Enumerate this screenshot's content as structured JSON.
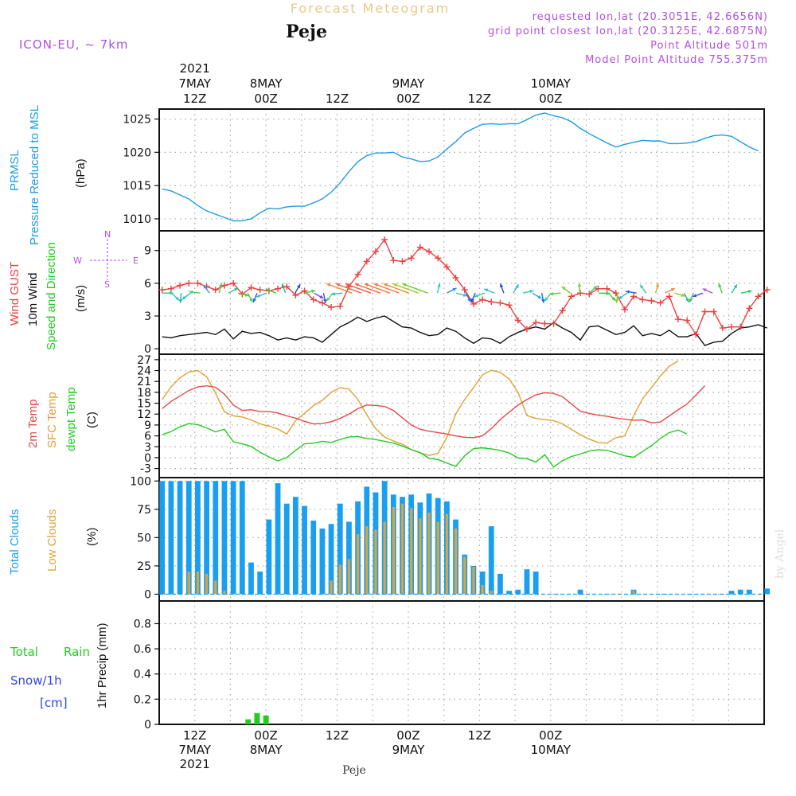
{
  "header": {
    "title": "Forecast Meteogram",
    "location": "Peje",
    "model": "ICON-EU, ~ 7km",
    "requested": "requested lon,lat (20.3051E, 42.6656N)",
    "gridpoint": "grid point closest lon,lat (20.3125E, 42.6875N)",
    "point_alt": "Point Altitude 501m",
    "model_alt": "Model Point Altitude 755.375m"
  },
  "footer": {
    "location": "Peje",
    "credit": "by Angel"
  },
  "colors": {
    "pressure": "#1e9be6",
    "gust": "#ec4040",
    "wind": "#111111",
    "temp": "#e84848",
    "sfc": "#e3a033",
    "dew": "#22cc22",
    "total_cloud": "#1a9ff0",
    "low_cloud": "#dda43c",
    "rain": "#22cc22",
    "snow": "#3344ee",
    "compass": "#b050e0",
    "info": "#b050e0"
  },
  "time_axis": {
    "top_labels": [
      {
        "lines": [
          "2021",
          "7MAY",
          "12Z"
        ]
      },
      {
        "lines": [
          "8MAY",
          "00Z"
        ]
      },
      {
        "lines": [
          "12Z"
        ]
      },
      {
        "lines": [
          "9MAY",
          "00Z"
        ]
      },
      {
        "lines": [
          "12Z"
        ]
      },
      {
        "lines": [
          "10MAY",
          "00Z"
        ]
      }
    ],
    "bottom_labels": [
      {
        "lines": [
          "12Z",
          "7MAY",
          "2021"
        ]
      },
      {
        "lines": [
          "00Z",
          "8MAY"
        ]
      },
      {
        "lines": [
          "12Z"
        ]
      },
      {
        "lines": [
          "00Z",
          "9MAY"
        ]
      },
      {
        "lines": [
          "12Z"
        ]
      },
      {
        "lines": [
          "00Z",
          "10MAY"
        ]
      }
    ]
  },
  "panel_labels": {
    "pressure": {
      "a": "PRMSL",
      "b": "Pressure Reduced to MSL",
      "unit": "(hPa)"
    },
    "wind": {
      "a": "Wind GUST",
      "b": "10m Wind",
      "c": "Speed and Direction",
      "unit": "(m/s)",
      "compass_n": "N",
      "compass_s": "S",
      "compass_w": "W",
      "compass_e": "E"
    },
    "temp": {
      "a": "2m Temp",
      "b": "SFC Temp",
      "c": "dewpt Temp",
      "unit": "(C)"
    },
    "cloud": {
      "a": "Total Clouds",
      "b": "Low Clouds",
      "unit": "(%)"
    },
    "precip": {
      "a": "Total",
      "a2": "Rain",
      "b": "Snow/1h",
      "c": "[cm]",
      "unit": "1hr Precip (mm)"
    }
  },
  "chart_data": [
    {
      "type": "line",
      "title": "PRMSL Pressure Reduced to MSL",
      "ylabel": "(hPa)",
      "x_start_hour": 1,
      "x_step_hours": 3,
      "yticks": [
        1010,
        1015,
        1020,
        1025
      ],
      "ylim": [
        1008.2,
        1026.5
      ],
      "values": [
        1014.5,
        1014.2,
        1013.6,
        1013.0,
        1012.0,
        1011.2,
        1010.7,
        1010.2,
        1009.7,
        1009.7,
        1010.0,
        1010.9,
        1011.6,
        1011.5,
        1011.8,
        1011.9,
        1011.9,
        1012.4,
        1013.0,
        1014.0,
        1015.4,
        1017.1,
        1018.6,
        1019.5,
        1019.9,
        1019.9,
        1020.0,
        1019.3,
        1019.0,
        1018.6,
        1018.7,
        1019.3,
        1020.5,
        1021.6,
        1022.9,
        1023.6,
        1024.2,
        1024.3,
        1024.2,
        1024.3,
        1024.3,
        1024.9,
        1025.6,
        1025.9,
        1025.5,
        1025.2,
        1024.6,
        1023.6,
        1022.8,
        1022.1,
        1021.4,
        1020.8,
        1021.2,
        1021.5,
        1021.8,
        1021.7,
        1021.7,
        1021.3,
        1021.3,
        1021.4,
        1021.6,
        1022.1,
        1022.5,
        1022.6,
        1022.4,
        1021.6,
        1020.8,
        1020.2
      ]
    },
    {
      "type": "line",
      "title": "Wind GUST / 10m Wind Speed and Direction",
      "ylabel": "(m/s)",
      "x_start_hour": 1,
      "x_step_hours": 3,
      "yticks": [
        0,
        3,
        6,
        9
      ],
      "ylim": [
        -0.5,
        10.8
      ],
      "series": [
        {
          "name": "Wind GUST",
          "values": [
            5.4,
            5.5,
            5.8,
            6.0,
            6.0,
            5.7,
            5.4,
            5.8,
            6.0,
            5.0,
            5.6,
            5.4,
            5.3,
            5.5,
            5.7,
            4.9,
            5.3,
            4.5,
            4.2,
            3.8,
            3.9,
            5.7,
            6.8,
            8.0,
            8.9,
            10.0,
            8.1,
            8.0,
            8.3,
            9.3,
            8.9,
            8.3,
            7.5,
            6.5,
            5.4,
            4.1,
            4.5,
            4.3,
            4.2,
            4.0,
            2.6,
            1.8,
            2.4,
            2.3,
            2.3,
            3.5,
            4.8,
            5.1,
            5.0,
            5.5,
            5.5,
            5.1,
            3.6,
            4.8,
            4.5,
            4.4,
            4.2,
            4.8,
            2.7,
            2.6,
            1.3,
            3.4,
            3.4,
            1.9,
            2.0,
            2.0,
            3.7,
            4.8,
            5.4
          ]
        },
        {
          "name": "10m Wind",
          "values": [
            1.1,
            1.0,
            1.2,
            1.3,
            1.4,
            1.5,
            1.3,
            1.8,
            0.9,
            1.6,
            1.4,
            1.5,
            1.2,
            0.8,
            1.0,
            0.8,
            1.1,
            1.0,
            0.6,
            1.3,
            2.0,
            2.4,
            2.9,
            2.5,
            2.8,
            3.0,
            2.5,
            2.0,
            1.9,
            1.5,
            1.2,
            1.3,
            1.9,
            1.6,
            1.0,
            0.5,
            1.0,
            0.9,
            0.5,
            1.1,
            1.5,
            1.8,
            2.0,
            1.8,
            2.4,
            1.9,
            1.5,
            0.8,
            2.0,
            2.1,
            1.7,
            1.3,
            1.5,
            2.1,
            1.2,
            1.4,
            1.2,
            1.7,
            1.1,
            1.1,
            1.4,
            0.3,
            0.6,
            0.7,
            1.4,
            1.9,
            2.0,
            2.2,
            1.9
          ]
        }
      ],
      "arrow_colors": [
        "#22cc99",
        "#33ccaa",
        "#22aadd",
        "#22ccaa",
        "#44cc66",
        "#3399ee",
        "#44cc44",
        "#33bb88",
        "#66cc33",
        "#44cc44",
        "#2266ee",
        "#33bbcc",
        "#44cc33",
        "#33aa99",
        "#2244dd",
        "#44cc44",
        "#6644ee",
        "#3355ee",
        "#66cc44",
        "#33bbcc",
        "#ee8844",
        "#ee6644",
        "#ee5555",
        "#ee6633",
        "#ee7733",
        "#ee7744",
        "#ee8833",
        "#99cc22",
        "#66cc33",
        "#33ccbb",
        "#2288ee",
        "#33bbcc",
        "#3366ee",
        "#2244dd",
        "#33ccbb",
        "#33bbcc",
        "#2244dd",
        "#33bbcc",
        "#33ccaa",
        "#22aadd",
        "#2266dd",
        "#33ccaa",
        "#66cc33",
        "#77cc33",
        "#77cc33",
        "#44cc66",
        "#22cc44",
        "#33cc44",
        "#99cc22",
        "#33bbcc",
        "#2266dd",
        "#33ccaa",
        "#ccaa33",
        "#ee8844",
        "#99cc22",
        "#33aa99",
        "#22cc44",
        "#5544ee",
        "#aa55ee",
        "#44cc44",
        "#33bbaa",
        "#22cc66"
      ]
    },
    {
      "type": "line",
      "title": "2m Temp / SFC Temp / dewpt Temp",
      "ylabel": "(C)",
      "x_start_hour": 1,
      "x_step_hours": 3,
      "yticks": [
        -3,
        0,
        3,
        6,
        9,
        12,
        15,
        18,
        21,
        24,
        27
      ],
      "ylim": [
        -5.5,
        28.5
      ],
      "series": [
        {
          "name": "2m Temp",
          "values": [
            13.5,
            15.5,
            17.0,
            18.5,
            19.5,
            19.8,
            19.4,
            17.5,
            14.5,
            13.0,
            13.2,
            12.7,
            12.7,
            12.3,
            11.5,
            10.9,
            10.0,
            9.3,
            9.4,
            9.9,
            10.8,
            12.0,
            13.5,
            14.5,
            14.4,
            14.1,
            13.0,
            11.0,
            9.0,
            7.8,
            7.3,
            6.9,
            6.5,
            6.0,
            5.6,
            5.5,
            6.0,
            8.0,
            10.5,
            12.5,
            14.5,
            16.0,
            17.3,
            17.9,
            17.7,
            16.8,
            14.8,
            12.8,
            12.2,
            11.7,
            11.4,
            10.9,
            10.6,
            10.3,
            10.4,
            9.6,
            9.8,
            11.5,
            13.2,
            14.8,
            17.2,
            19.8
          ]
        },
        {
          "name": "SFC Temp",
          "values": [
            16.0,
            19.5,
            22.0,
            23.6,
            24.0,
            22.3,
            17.8,
            12.6,
            11.5,
            11.2,
            10.4,
            9.3,
            8.7,
            7.9,
            6.5,
            10.2,
            12.2,
            14.3,
            15.8,
            18.0,
            19.3,
            18.9,
            16.0,
            11.8,
            8.0,
            5.7,
            4.6,
            3.7,
            2.2,
            1.3,
            0.6,
            1.2,
            5.6,
            12.0,
            16.0,
            19.3,
            22.8,
            24.1,
            23.5,
            21.7,
            18.0,
            11.6,
            10.8,
            10.5,
            10.2,
            9.3,
            7.8,
            6.3,
            5.1,
            4.2,
            4.0,
            5.5,
            6.0,
            11.6,
            16.2,
            19.3,
            22.5,
            25.2,
            26.6
          ]
        },
        {
          "name": "dewpt Temp",
          "values": [
            6.3,
            7.2,
            8.5,
            9.4,
            9.1,
            8.2,
            7.1,
            7.8,
            4.4,
            3.8,
            3.1,
            1.5,
            0.2,
            -0.9,
            0.0,
            2.0,
            3.8,
            4.0,
            4.5,
            4.2,
            5.0,
            5.7,
            5.8,
            5.3,
            5.0,
            4.5,
            4.0,
            3.2,
            2.2,
            1.4,
            -0.2,
            -0.5,
            -1.5,
            -2.4,
            0.5,
            2.5,
            2.7,
            2.4,
            2.0,
            1.3,
            -0.1,
            -0.3,
            -1.2,
            0.8,
            -2.6,
            -0.8,
            0.3,
            1.0,
            1.8,
            2.2,
            2.0,
            1.3,
            0.5,
            0.1,
            1.7,
            3.3,
            5.3,
            6.9,
            7.6,
            6.5
          ]
        }
      ]
    },
    {
      "type": "bar",
      "title": "Total Clouds / Low Clouds",
      "ylabel": "(%)",
      "x_start_hour": 1,
      "x_step_hours": 3,
      "yticks": [
        0,
        25,
        50,
        75,
        100
      ],
      "ylim": [
        -6,
        103
      ],
      "series": [
        {
          "name": "Total Clouds",
          "values": [
            100,
            100,
            100,
            100,
            100,
            100,
            100,
            100,
            100,
            100,
            28,
            20,
            66,
            98,
            80,
            86,
            78,
            65,
            58,
            62,
            80,
            64,
            82,
            95,
            90,
            100,
            88,
            86,
            88,
            81,
            89,
            85,
            82,
            66,
            35,
            25,
            20,
            60,
            18,
            3,
            4,
            22,
            20,
            0,
            0,
            0,
            0,
            4,
            0,
            0,
            0,
            0,
            0,
            4,
            0,
            0,
            0,
            0,
            0,
            0,
            0,
            0,
            0,
            0,
            3,
            4,
            4,
            0,
            5
          ]
        },
        {
          "name": "Low Clouds",
          "values": [
            0,
            0,
            0,
            20,
            20,
            18,
            12,
            3,
            0,
            0,
            0,
            0,
            0,
            0,
            0,
            0,
            0,
            0,
            0,
            12,
            26,
            31,
            53,
            60,
            57,
            64,
            77,
            80,
            76,
            67,
            72,
            64,
            71,
            58,
            33,
            24,
            8,
            3,
            0,
            0,
            0,
            0,
            0,
            0,
            0,
            0,
            0,
            0,
            0,
            0,
            0,
            0,
            0,
            3,
            0,
            0,
            0,
            0,
            0,
            0,
            0,
            0,
            0,
            0,
            0,
            0,
            0,
            0,
            0
          ]
        }
      ]
    },
    {
      "type": "bar",
      "title": "1hr Precip (mm)",
      "ylabel": "1hr Precip (mm)",
      "yticks": [
        0,
        0.2,
        0.4,
        0.6,
        0.8
      ],
      "ylim": [
        0,
        0.98
      ],
      "series": [
        {
          "name": "Total Rain",
          "hours": [
            30,
            33,
            36
          ],
          "values": [
            0.04,
            0.09,
            0.07
          ]
        }
      ]
    }
  ]
}
